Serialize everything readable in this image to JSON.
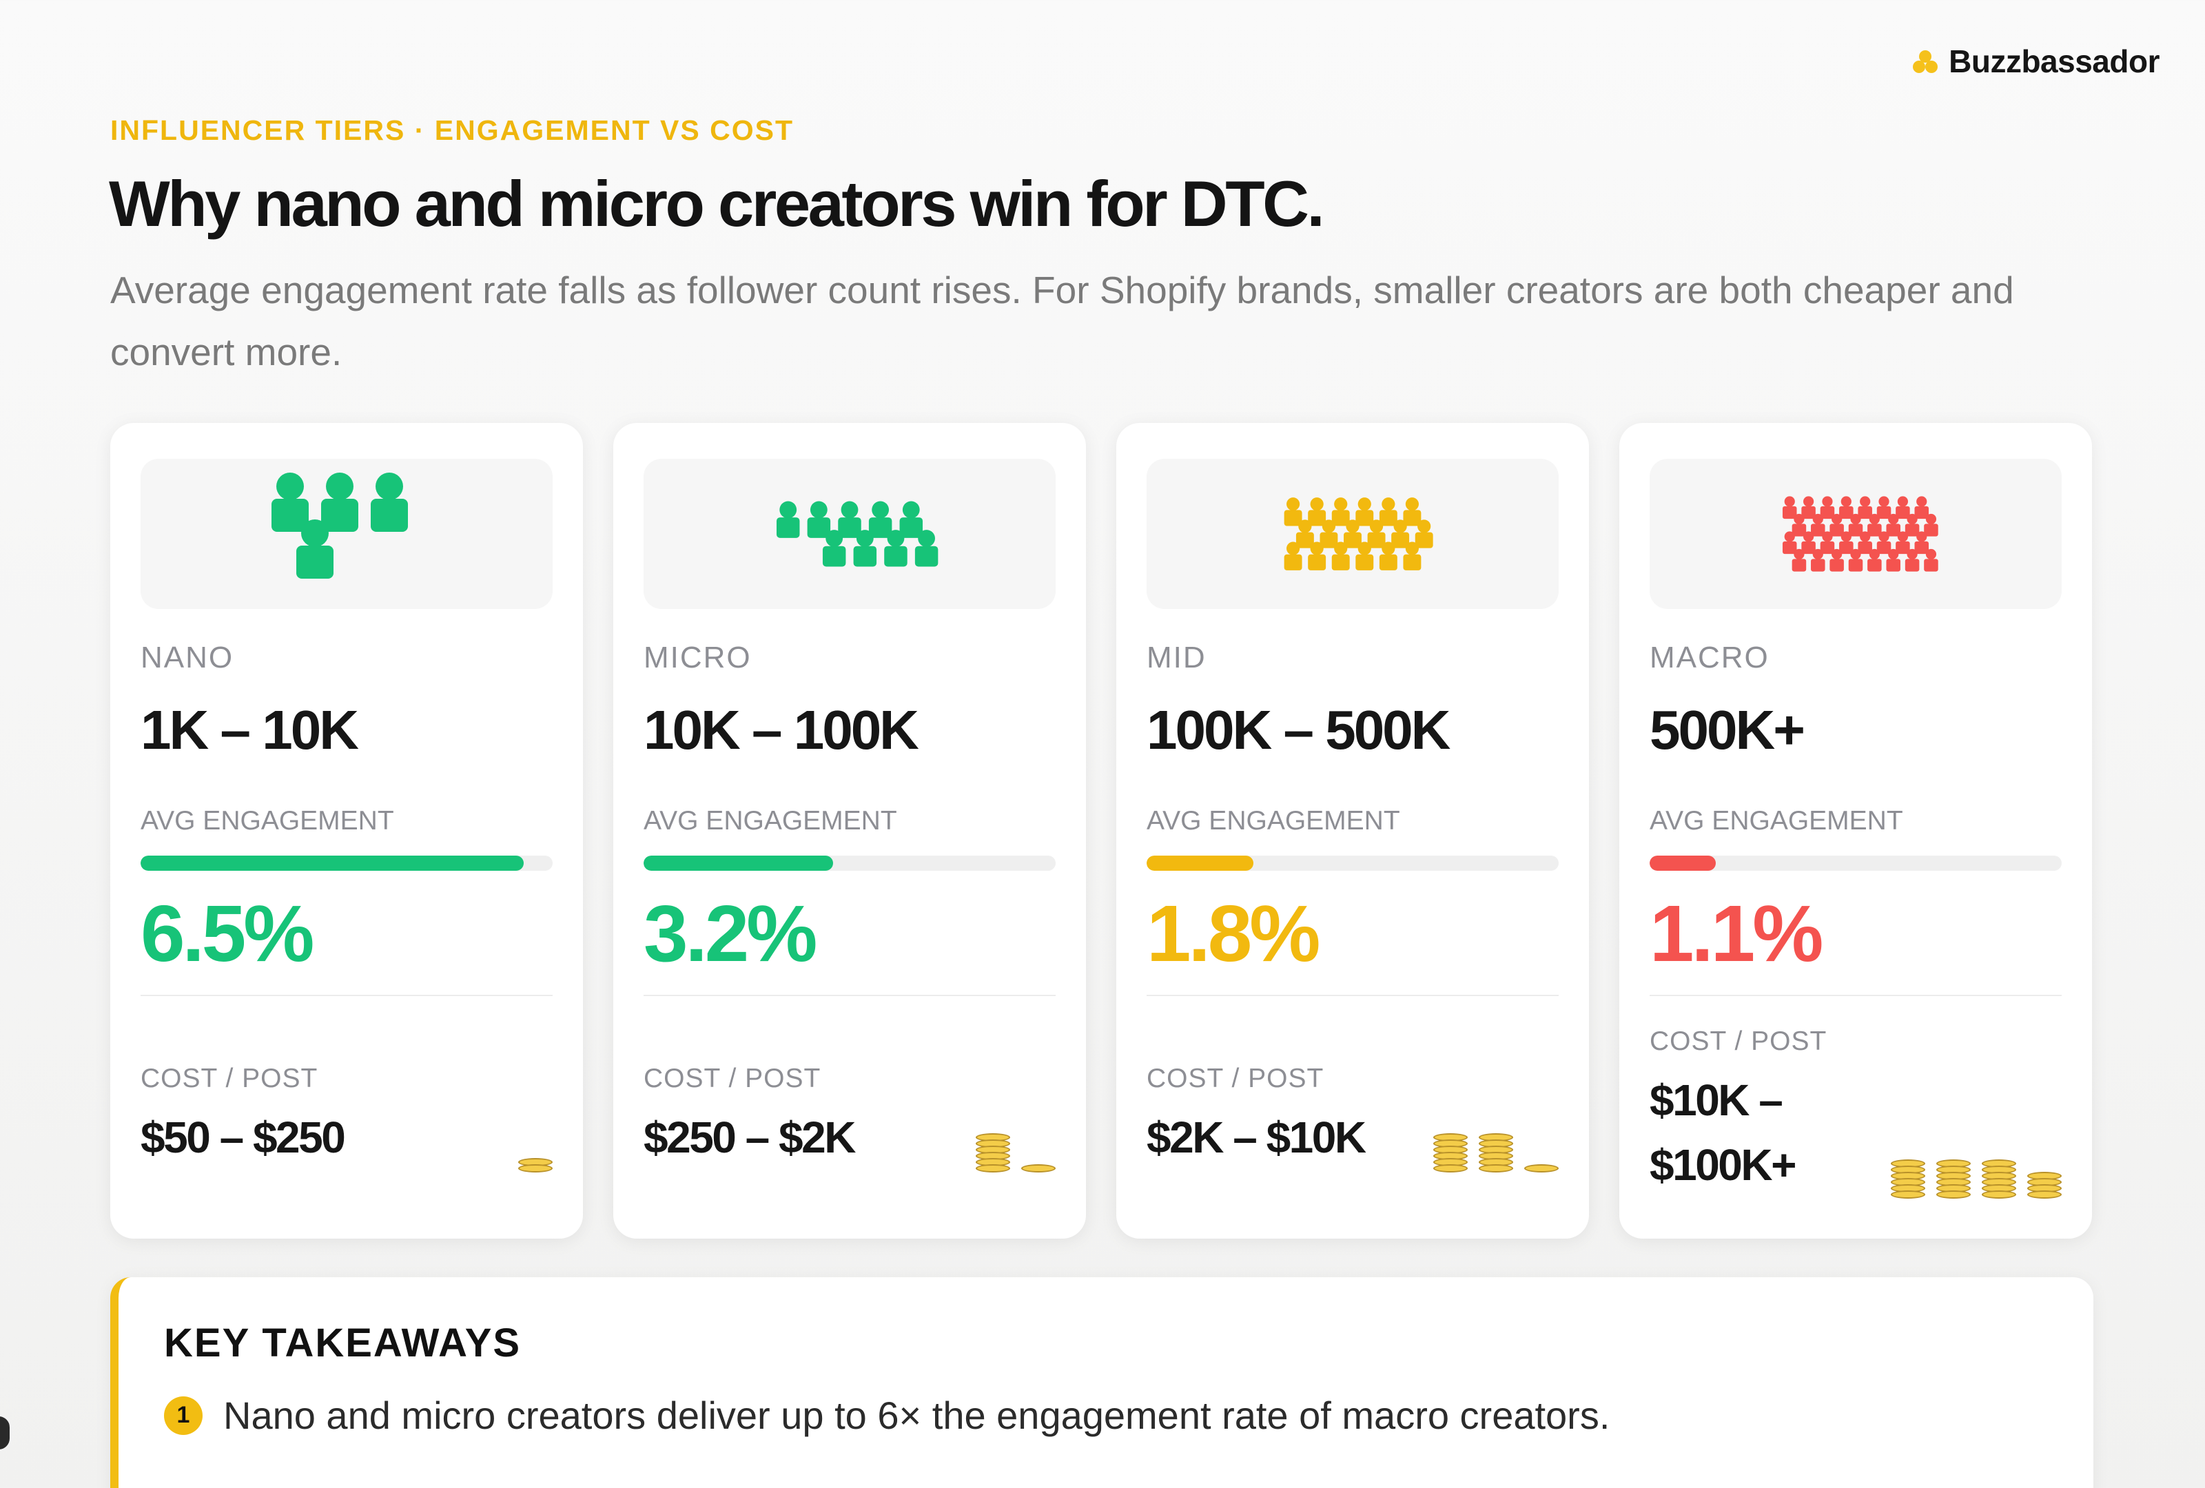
{
  "brand": {
    "name": "Buzzbassador",
    "accent": "#f2bd12"
  },
  "eyebrow": "INFLUENCER TIERS · ENGAGEMENT VS COST",
  "title": "Why nano and micro creators win for DTC.",
  "subtitle": "Average engagement rate falls as follower count rises. For Shopify brands, smaller creators are both cheaper and convert more.",
  "tiers": [
    {
      "name": "NANO",
      "range": "1K – 10K",
      "engagement_label": "AVG ENGAGEMENT",
      "engagement": "6.5%",
      "engagement_fill": 0.93,
      "cost_label": "COST / POST",
      "cost": "$50 – $250",
      "coin_level": 1,
      "color": "#17c378",
      "icon": "nano-crowd-icon"
    },
    {
      "name": "MICRO",
      "range": "10K – 100K",
      "engagement_label": "AVG ENGAGEMENT",
      "engagement": "3.2%",
      "engagement_fill": 0.46,
      "cost_label": "COST / POST",
      "cost": "$250 – $2K",
      "coin_level": 2,
      "color": "#17c378",
      "icon": "micro-crowd-icon"
    },
    {
      "name": "MID",
      "range": "100K – 500K",
      "engagement_label": "AVG ENGAGEMENT",
      "engagement": "1.8%",
      "engagement_fill": 0.26,
      "cost_label": "COST / POST",
      "cost": "$2K – $10K",
      "coin_level": 3,
      "color": "#f2b90f",
      "icon": "mid-crowd-icon"
    },
    {
      "name": "MACRO",
      "range": "500K+",
      "engagement_label": "AVG ENGAGEMENT",
      "engagement": "1.1%",
      "engagement_fill": 0.16,
      "cost_label": "COST / POST",
      "cost": "$10K – $100K+",
      "coin_level": 4,
      "color": "#f4534f",
      "icon": "macro-crowd-icon"
    }
  ],
  "takeaways": {
    "title": "KEY TAKEAWAYS",
    "items": [
      {
        "num": "1",
        "text": "Nano and micro creators deliver up to 6× the engagement rate of macro creators."
      }
    ]
  }
}
